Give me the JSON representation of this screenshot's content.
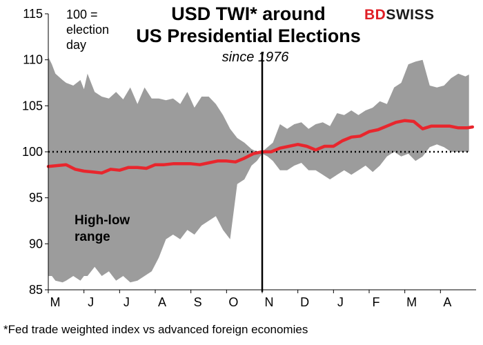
{
  "title_line1": "USD TWI* around",
  "title_line2": "US Presidential Elections",
  "subtitle": "since 1976",
  "note_line1": "100 =",
  "note_line2": "election",
  "note_line3": "day",
  "range_label_line1": "High-low",
  "range_label_line2": "range",
  "footnote": "*Fed  trade weighted index vs advanced foreign economies",
  "logo": {
    "part1": "BD",
    "part2": "SWISS"
  },
  "colors": {
    "range": "#9c9c9c",
    "line": "#e8262d",
    "reference": "#000000",
    "marker": "#000000"
  },
  "chart_data": {
    "type": "area",
    "title": "USD TWI* around US Presidential Elections",
    "subtitle": "since 1976",
    "xlabel": "",
    "ylabel": "",
    "ylim": [
      85,
      115
    ],
    "yticks": [
      85,
      90,
      95,
      100,
      105,
      110,
      115
    ],
    "x_tick_labels": [
      "M",
      "J",
      "J",
      "A",
      "S",
      "O",
      "N",
      "D",
      "J",
      "F",
      "M",
      "A"
    ],
    "x_range": [
      0,
      12
    ],
    "election_day_x": 6,
    "reference_value": 100,
    "legend": "none",
    "grid": false,
    "series": [
      {
        "kind": "range",
        "x": [
          0,
          0.1,
          0.2,
          0.4,
          0.5,
          0.7,
          0.9,
          1.0,
          1.1,
          1.3,
          1.5,
          1.7,
          1.9,
          2.1,
          2.3,
          2.5,
          2.7,
          2.9,
          3.1,
          3.3,
          3.5,
          3.7,
          3.9,
          4.1,
          4.3,
          4.5,
          4.7,
          4.9,
          5.1,
          5.3,
          5.5,
          5.7,
          5.85,
          6.0,
          6.15,
          6.3,
          6.5,
          6.7,
          6.9,
          7.1,
          7.3,
          7.5,
          7.7,
          7.9,
          8.1,
          8.3,
          8.5,
          8.7,
          8.9,
          9.1,
          9.3,
          9.5,
          9.7,
          9.9,
          10.1,
          10.3,
          10.5,
          10.7,
          10.9,
          11.1,
          11.3,
          11.5,
          11.7,
          11.8
        ],
        "high": [
          110.3,
          109.5,
          108.5,
          107.8,
          107.5,
          107.2,
          107.8,
          106.8,
          108.5,
          106.5,
          106.0,
          105.8,
          106.5,
          105.7,
          107.0,
          105.2,
          107.0,
          105.8,
          105.8,
          105.6,
          105.8,
          105.2,
          106.5,
          104.8,
          106.0,
          106.0,
          105.2,
          104.0,
          102.5,
          101.5,
          101.0,
          100.3,
          100.0,
          100.0,
          100.5,
          101.0,
          103.0,
          102.5,
          103.0,
          103.2,
          102.5,
          103.0,
          103.2,
          102.8,
          104.2,
          104.0,
          104.5,
          104.0,
          104.5,
          104.8,
          105.5,
          105.2,
          107.0,
          107.5,
          109.5,
          109.8,
          110.0,
          107.2,
          107.0,
          107.2,
          108.0,
          108.5,
          108.2,
          108.4
        ],
        "low": [
          86.5,
          86.5,
          86.0,
          85.8,
          86.0,
          86.5,
          86.0,
          86.5,
          86.5,
          87.5,
          86.5,
          87.0,
          86.0,
          86.5,
          85.8,
          86.0,
          86.5,
          87.0,
          88.5,
          90.5,
          91.0,
          90.5,
          91.5,
          91.0,
          92.0,
          92.5,
          93.0,
          91.5,
          90.5,
          96.5,
          97.0,
          98.5,
          99.0,
          99.8,
          99.5,
          99.0,
          98.0,
          98.0,
          98.5,
          98.8,
          98.0,
          98.0,
          97.5,
          97.0,
          97.5,
          98.0,
          97.5,
          98.0,
          98.5,
          97.8,
          98.5,
          99.5,
          100.0,
          99.5,
          99.8,
          99.0,
          99.5,
          100.5,
          100.8,
          100.5,
          100.0,
          100.0,
          100.0,
          100.0
        ]
      },
      {
        "kind": "line",
        "x": [
          0,
          0.25,
          0.5,
          0.75,
          1.0,
          1.25,
          1.5,
          1.75,
          2.0,
          2.25,
          2.5,
          2.75,
          3.0,
          3.25,
          3.5,
          3.75,
          4.0,
          4.25,
          4.5,
          4.75,
          5.0,
          5.25,
          5.5,
          5.75,
          6.0,
          6.25,
          6.5,
          6.75,
          7.0,
          7.25,
          7.5,
          7.75,
          8.0,
          8.25,
          8.5,
          8.75,
          9.0,
          9.25,
          9.5,
          9.75,
          10.0,
          10.25,
          10.5,
          10.75,
          11.0,
          11.25,
          11.5,
          11.75,
          11.9
        ],
        "values": [
          98.4,
          98.5,
          98.6,
          98.1,
          97.9,
          97.8,
          97.7,
          98.1,
          98.0,
          98.3,
          98.3,
          98.2,
          98.6,
          98.6,
          98.7,
          98.7,
          98.7,
          98.6,
          98.8,
          99.0,
          99.0,
          98.9,
          99.3,
          99.8,
          100.0,
          100.0,
          100.4,
          100.6,
          100.8,
          100.6,
          100.2,
          100.6,
          100.6,
          101.2,
          101.6,
          101.7,
          102.2,
          102.4,
          102.8,
          103.2,
          103.4,
          103.3,
          102.5,
          102.8,
          102.8,
          102.8,
          102.6,
          102.6,
          102.7
        ]
      }
    ]
  }
}
